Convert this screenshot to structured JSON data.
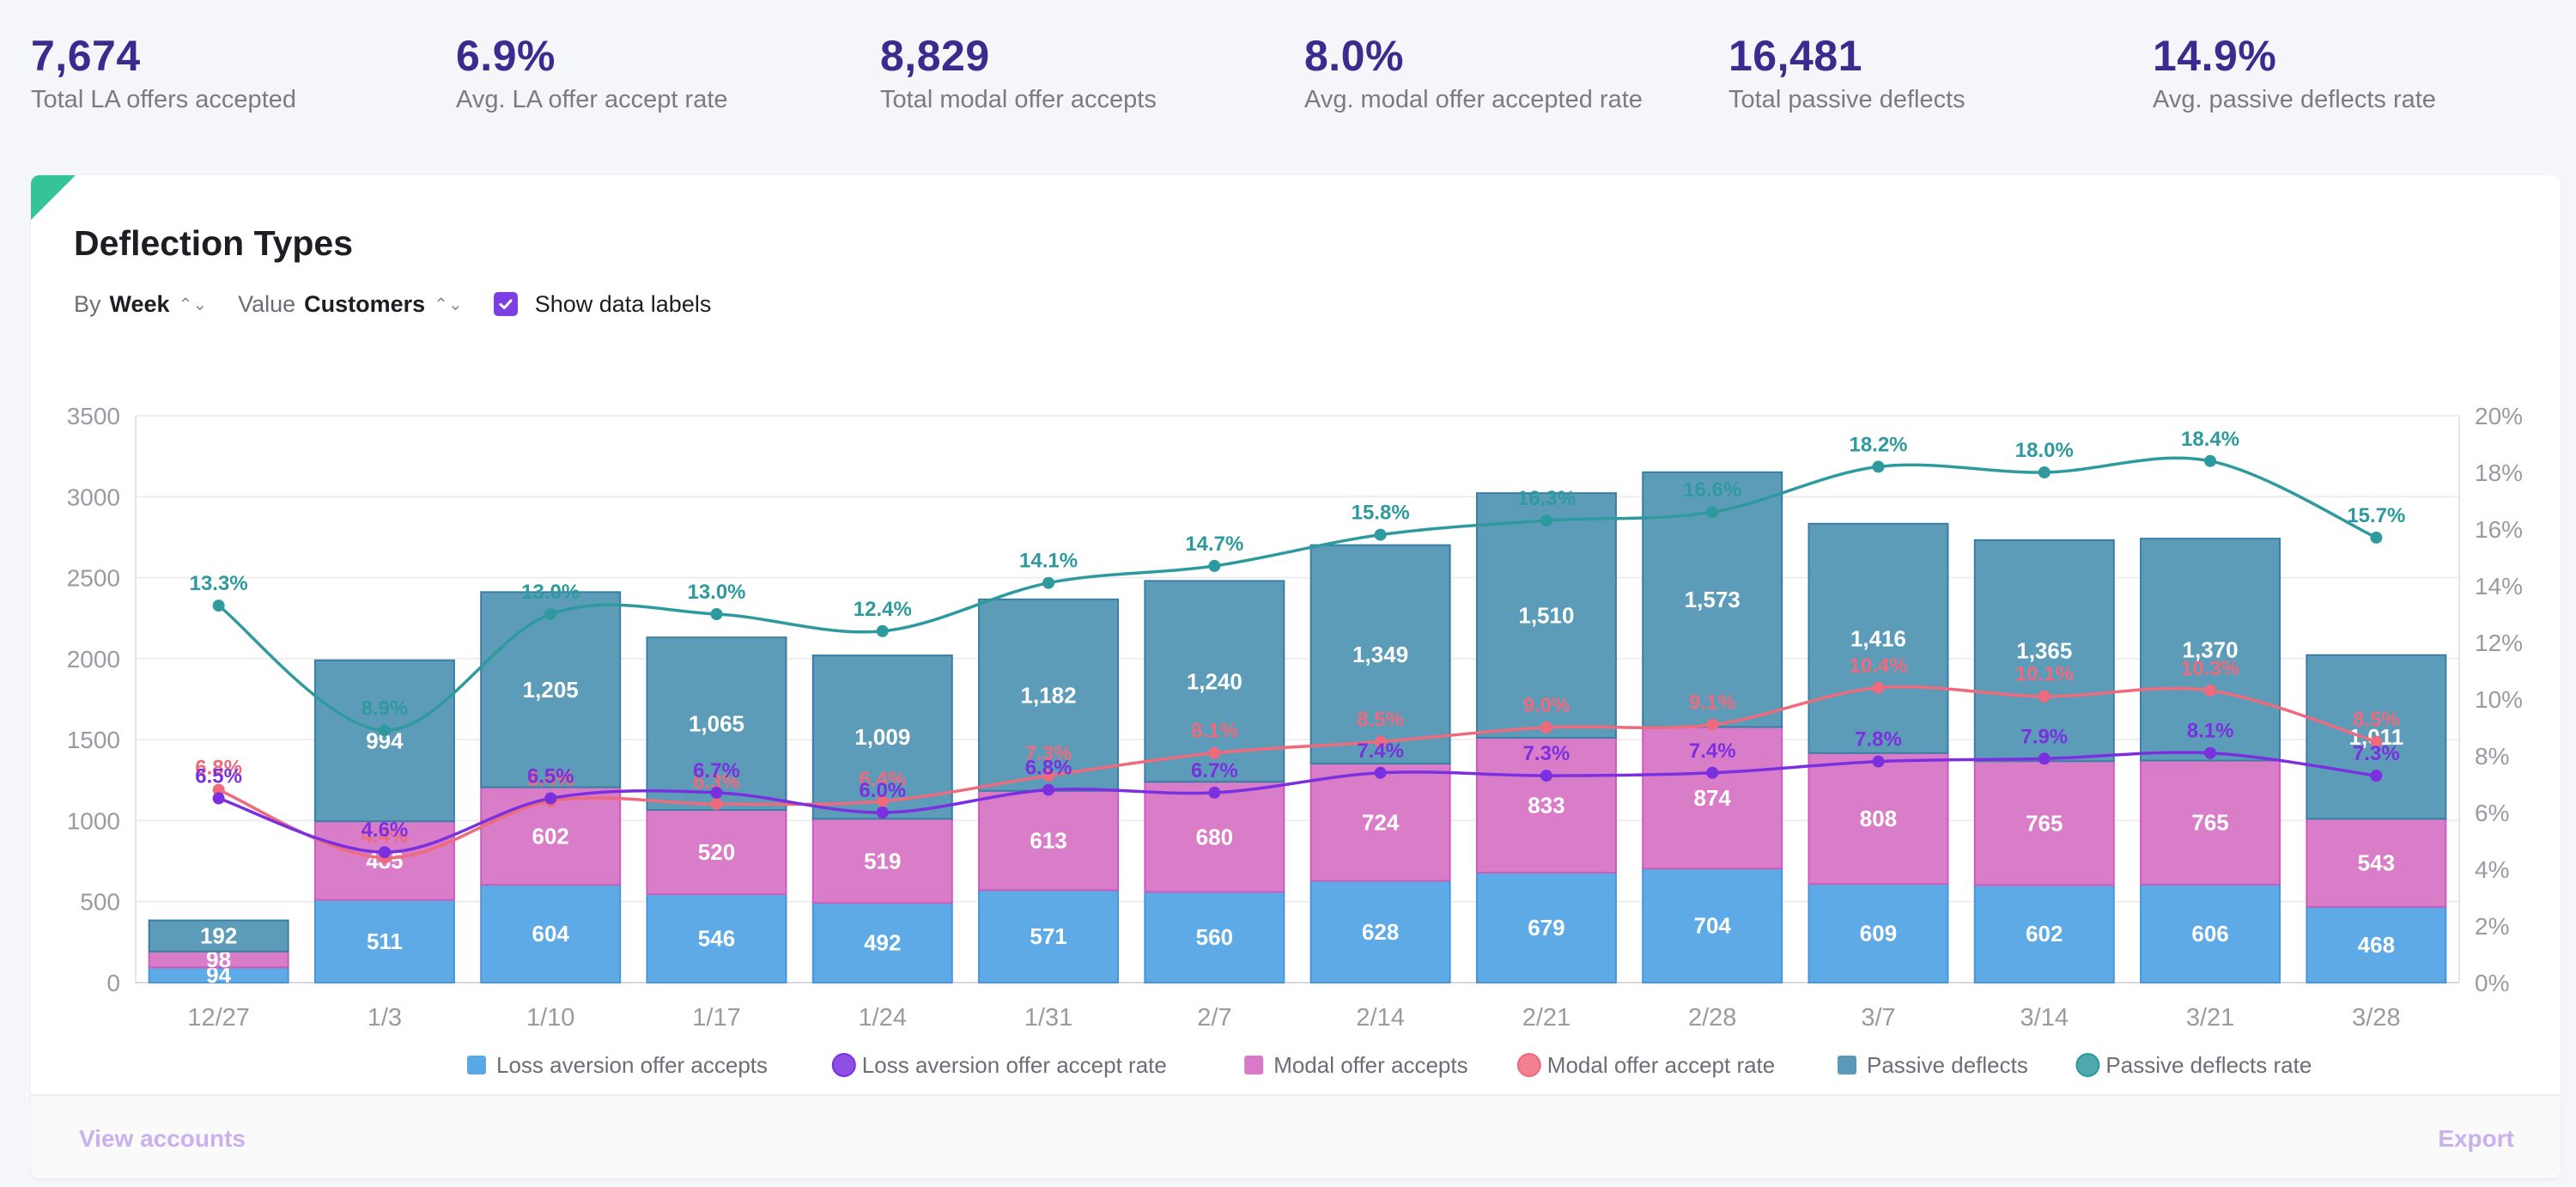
{
  "kpis": [
    {
      "value": "7,674",
      "label": "Total LA offers accepted"
    },
    {
      "value": "6.9%",
      "label": "Avg. LA offer accept rate"
    },
    {
      "value": "8,829",
      "label": "Total modal offer accepts"
    },
    {
      "value": "8.0%",
      "label": "Avg. modal offer accepted rate"
    },
    {
      "value": "16,481",
      "label": "Total passive deflects"
    },
    {
      "value": "14.9%",
      "label": "Avg. passive deflects rate"
    }
  ],
  "card": {
    "title": "Deflection Types",
    "by_prefix": "By",
    "by_value": "Week",
    "value_prefix": "Value",
    "value_value": "Customers",
    "caret": "⌃⌄",
    "show_labels": "Show data labels",
    "view_accounts": "View accounts",
    "export": "Export"
  },
  "colors": {
    "la": "#5ba8e6",
    "la_border": "#4896da",
    "la_rate": "#7b30e0",
    "modal": "#d97ac8",
    "modal_border": "#cc5cbb",
    "modal_rate": "#ee6a7d",
    "passive": "#5a9ab8",
    "passive_border": "#3a7ea3",
    "passive_rate": "#2e9a9e"
  },
  "chart_data": {
    "type": "bar",
    "stacked": true,
    "title": "Deflection Types",
    "categories": [
      "12/27",
      "1/3",
      "1/10",
      "1/17",
      "1/24",
      "1/31",
      "2/7",
      "2/14",
      "2/21",
      "2/28",
      "3/7",
      "3/14",
      "3/21",
      "3/28"
    ],
    "y_left": {
      "min": 0,
      "max": 3500,
      "ticks": [
        "0",
        "500",
        "1000",
        "1500",
        "2000",
        "2500",
        "3000",
        "3500"
      ]
    },
    "y_right": {
      "min": 0,
      "max": 20,
      "ticks": [
        "0%",
        "2%",
        "4%",
        "6%",
        "8%",
        "10%",
        "12%",
        "14%",
        "16%",
        "18%",
        "20%"
      ]
    },
    "series": [
      {
        "name": "Loss aversion offer accepts",
        "kind": "bar",
        "values": [
          94,
          511,
          604,
          546,
          492,
          571,
          560,
          628,
          679,
          704,
          609,
          602,
          606,
          468
        ]
      },
      {
        "name": "Modal offer accepts",
        "kind": "bar",
        "values": [
          98,
          485,
          602,
          520,
          519,
          613,
          680,
          724,
          833,
          874,
          808,
          765,
          765,
          543
        ]
      },
      {
        "name": "Passive deflects",
        "kind": "bar",
        "values": [
          192,
          994,
          1205,
          1065,
          1009,
          1182,
          1240,
          1349,
          1510,
          1573,
          1416,
          1365,
          1370,
          1011
        ]
      },
      {
        "name": "Loss aversion offer accept rate",
        "kind": "line",
        "axis": "right",
        "values": [
          6.5,
          4.6,
          6.5,
          6.7,
          6.0,
          6.8,
          6.7,
          7.4,
          7.3,
          7.4,
          7.8,
          7.9,
          8.1,
          7.3
        ],
        "labels": [
          "6.5%",
          "4.6%",
          "6.5%",
          "6.7%",
          "6.0%",
          "6.8%",
          "6.7%",
          "7.4%",
          "7.3%",
          "7.4%",
          "7.8%",
          "7.9%",
          "8.1%",
          "7.3%"
        ]
      },
      {
        "name": "Modal offer accept rate",
        "kind": "line",
        "axis": "right",
        "values": [
          6.8,
          4.4,
          6.4,
          6.3,
          6.4,
          7.3,
          8.1,
          8.5,
          9.0,
          9.1,
          10.4,
          10.1,
          10.3,
          8.5
        ],
        "labels": [
          "6.8%",
          "4.4%",
          "6.4%",
          "6.3%",
          "6.4%",
          "7.3%",
          "8.1%",
          "8.5%",
          "9.0%",
          "9.1%",
          "10.4%",
          "10.1%",
          "10.3%",
          "8.5%"
        ]
      },
      {
        "name": "Passive deflects rate",
        "kind": "line",
        "axis": "right",
        "values": [
          13.3,
          8.9,
          13.0,
          13.0,
          12.4,
          14.1,
          14.7,
          15.8,
          16.3,
          16.6,
          18.2,
          18.0,
          18.4,
          15.7
        ],
        "labels": [
          "13.3%",
          "8.9%",
          "13.0%",
          "13.0%",
          "12.4%",
          "14.1%",
          "14.7%",
          "15.8%",
          "16.3%",
          "16.6%",
          "18.2%",
          "18.0%",
          "18.4%",
          "15.7%"
        ]
      }
    ],
    "legend": [
      {
        "name": "Loss aversion offer accepts",
        "marker": "square",
        "color_key": "la"
      },
      {
        "name": "Loss aversion offer accept rate",
        "marker": "circle",
        "color_key": "la_rate"
      },
      {
        "name": "Modal offer accepts",
        "marker": "square",
        "color_key": "modal"
      },
      {
        "name": "Modal offer accept rate",
        "marker": "circle",
        "color_key": "modal_rate"
      },
      {
        "name": "Passive deflects",
        "marker": "square",
        "color_key": "passive"
      },
      {
        "name": "Passive deflects rate",
        "marker": "circle",
        "color_key": "passive_rate"
      }
    ],
    "legend_position": "bottom-center",
    "grid": true
  }
}
